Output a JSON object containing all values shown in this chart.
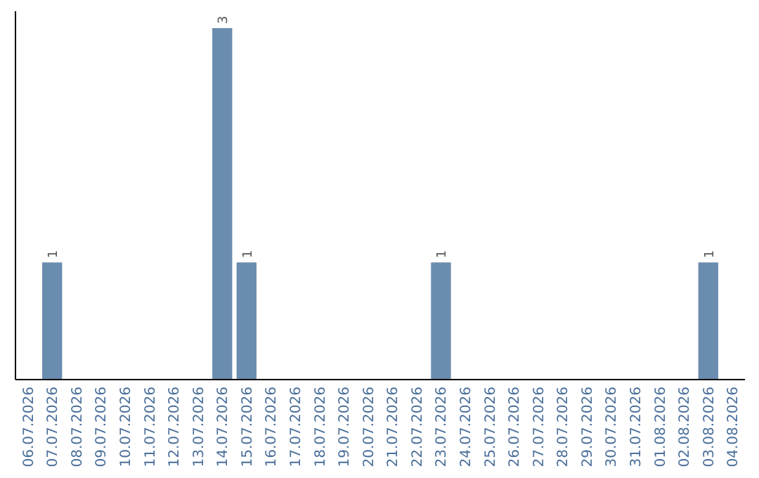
{
  "chart_data": {
    "type": "bar",
    "categories": [
      "06.07.2026",
      "07.07.2026",
      "08.07.2026",
      "09.07.2026",
      "10.07.2026",
      "11.07.2026",
      "12.07.2026",
      "13.07.2026",
      "14.07.2026",
      "15.07.2026",
      "16.07.2026",
      "17.07.2026",
      "18.07.2026",
      "19.07.2026",
      "20.07.2026",
      "21.07.2026",
      "22.07.2026",
      "23.07.2026",
      "24.07.2026",
      "25.07.2026",
      "26.07.2026",
      "27.07.2026",
      "28.07.2026",
      "29.07.2026",
      "30.07.2026",
      "31.07.2026",
      "01.08.2026",
      "02.08.2026",
      "03.08.2026",
      "04.08.2026"
    ],
    "values": [
      0,
      1,
      0,
      0,
      0,
      0,
      0,
      0,
      3,
      1,
      0,
      0,
      0,
      0,
      0,
      0,
      0,
      1,
      0,
      0,
      0,
      0,
      0,
      0,
      0,
      0,
      0,
      0,
      1,
      0
    ],
    "value_labels": [
      null,
      "1",
      null,
      null,
      null,
      null,
      null,
      null,
      "3",
      "1",
      null,
      null,
      null,
      null,
      null,
      null,
      null,
      "1",
      null,
      null,
      null,
      null,
      null,
      null,
      null,
      null,
      null,
      null,
      "1",
      null
    ],
    "color": "#6a8caf"
  }
}
